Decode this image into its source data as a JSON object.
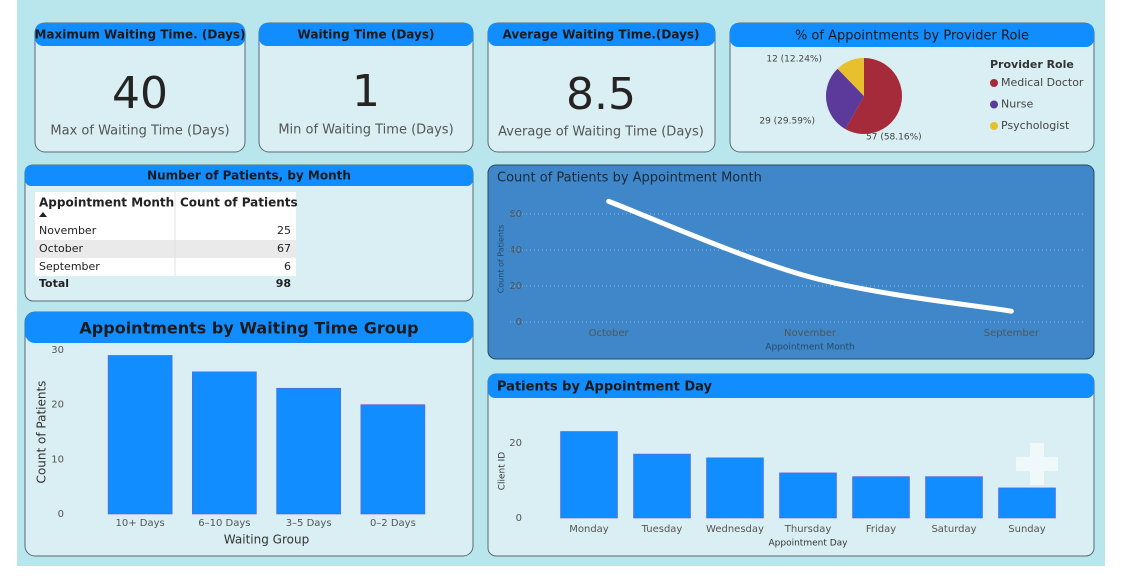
{
  "cards": [
    {
      "title": "Maximum Waiting Time. (Days)",
      "value": 40,
      "label": "Max of Waiting Time (Days)"
    },
    {
      "title": "Waiting Time (Days)",
      "value": 1,
      "label": "Min of Waiting Time (Days)"
    },
    {
      "title": "Average Waiting Time.(Days)",
      "value": 8.5,
      "label": "Average of Waiting Time (Days)"
    }
  ],
  "table": {
    "title": "Number of Patients, by Month",
    "columns": [
      "Appointment Month",
      "Count of Patients"
    ],
    "rows": [
      [
        "November",
        25
      ],
      [
        "October",
        67
      ],
      [
        "September",
        6
      ]
    ],
    "total": [
      "Total",
      98
    ]
  },
  "chart_data": [
    {
      "type": "pie",
      "title": "% of Appointments by Provider Role",
      "legend_title": "Provider Role",
      "legend": "right",
      "categories": [
        "Medical Doctor",
        "Nurse",
        "Psychologist"
      ],
      "values": [
        57,
        29,
        12
      ],
      "value_labels": [
        "57 (58.16%)",
        "29 (29.59%)",
        "12 (12.24%)"
      ],
      "colors": [
        "#a52a3a",
        "#5b3a9b",
        "#e8c02e"
      ]
    },
    {
      "type": "line",
      "title": "Count of Patients by Appointment Month",
      "xlabel": "Appointment Month",
      "ylabel": "Count of Patients",
      "categories": [
        "October",
        "November",
        "September"
      ],
      "values": [
        67,
        25,
        6
      ],
      "color": "#ffffff",
      "ylim": [
        0,
        70
      ],
      "yticks": [
        0,
        20,
        40,
        60
      ],
      "grid": true,
      "smooth": true
    },
    {
      "type": "bar",
      "title": "Appointments by Waiting Time Group",
      "xlabel": "Waiting Group",
      "ylabel": "Count of Patients",
      "categories": [
        "10+ Days",
        "6–10 Days",
        "3–5 Days",
        "0–2 Days"
      ],
      "values": [
        29,
        26,
        23,
        20
      ],
      "color": "#118dff",
      "ylim": [
        0,
        30
      ],
      "yticks": [
        0,
        10,
        20,
        30
      ],
      "grid": false
    },
    {
      "type": "bar",
      "title": "Patients by Appointment Day",
      "xlabel": "Appointment Day",
      "ylabel": "Client ID",
      "categories": [
        "Monday",
        "Tuesday",
        "Wednesday",
        "Thursday",
        "Friday",
        "Saturday",
        "Sunday"
      ],
      "values": [
        23,
        17,
        16,
        12,
        11,
        11,
        8
      ],
      "color": "#118dff",
      "ylim": [
        0,
        25
      ],
      "yticks": [
        0,
        20
      ],
      "grid": false
    }
  ]
}
